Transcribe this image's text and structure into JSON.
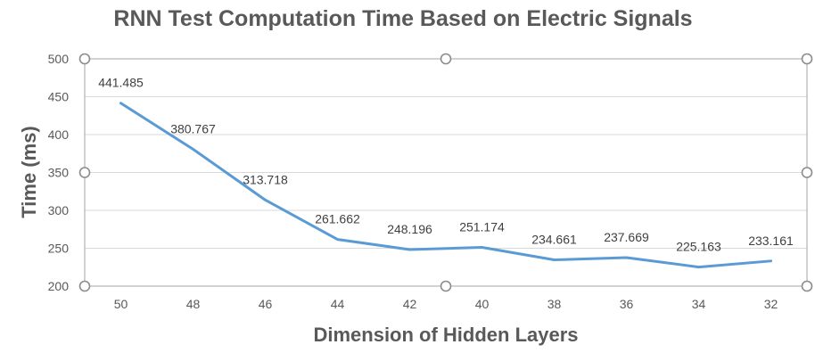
{
  "chart_data": {
    "type": "line",
    "title": "RNN Test Computation Time Based on Electric Signals",
    "xlabel": "Dimension of Hidden Layers",
    "ylabel": "Time (ms)",
    "categories": [
      "50",
      "48",
      "46",
      "44",
      "42",
      "40",
      "38",
      "36",
      "34",
      "32"
    ],
    "series": [
      {
        "values": [
          441.485,
          380.767,
          313.718,
          261.662,
          248.196,
          251.174,
          234.661,
          237.669,
          225.163,
          233.161
        ],
        "labels": [
          "441.485",
          "380.767",
          "313.718",
          "261.662",
          "248.196",
          "251.174",
          "234.661",
          "237.669",
          "225.163",
          "233.161"
        ],
        "color": "#5b9bd5"
      }
    ],
    "ylim": [
      200,
      500
    ],
    "yticks": [
      "200",
      "250",
      "300",
      "350",
      "400",
      "450",
      "500"
    ],
    "grid": true,
    "legend": "none"
  }
}
